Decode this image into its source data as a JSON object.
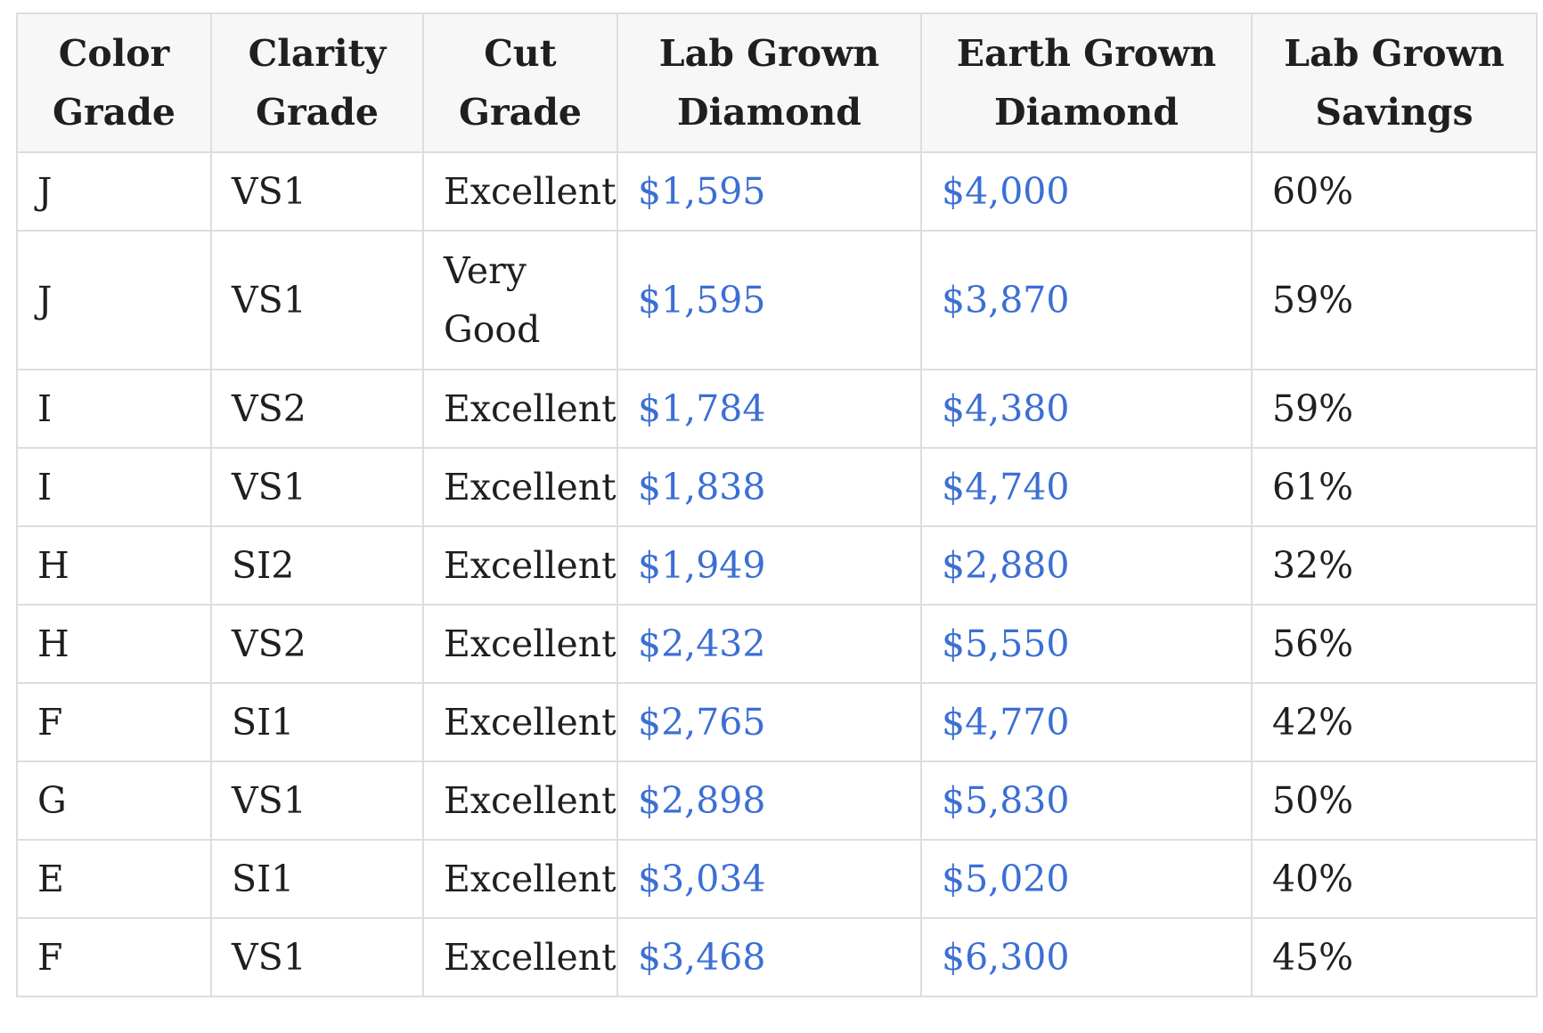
{
  "table": {
    "headers": [
      {
        "line1": "Color",
        "line2": "Grade"
      },
      {
        "line1": "Clarity",
        "line2": "Grade"
      },
      {
        "line1": "Cut",
        "line2": "Grade"
      },
      {
        "line1": "Lab Grown",
        "line2": "Diamond"
      },
      {
        "line1": "Earth Grown",
        "line2": "Diamond"
      },
      {
        "line1": "Lab Grown",
        "line2": "Savings"
      }
    ],
    "rows": [
      {
        "color": "J",
        "clarity": "VS1",
        "cut": "Excellent",
        "lab": "$1,595",
        "earth": "$4,000",
        "savings": "60%"
      },
      {
        "color": "J",
        "clarity": "VS1",
        "cut": "Very Good",
        "lab": "$1,595",
        "earth": "$3,870",
        "savings": "59%"
      },
      {
        "color": "I",
        "clarity": "VS2",
        "cut": "Excellent",
        "lab": "$1,784",
        "earth": "$4,380",
        "savings": "59%"
      },
      {
        "color": "I",
        "clarity": "VS1",
        "cut": "Excellent",
        "lab": "$1,838",
        "earth": "$4,740",
        "savings": "61%"
      },
      {
        "color": "H",
        "clarity": "SI2",
        "cut": "Excellent",
        "lab": "$1,949",
        "earth": "$2,880",
        "savings": "32%"
      },
      {
        "color": "H",
        "clarity": "VS2",
        "cut": "Excellent",
        "lab": "$2,432",
        "earth": "$5,550",
        "savings": "56%"
      },
      {
        "color": "F",
        "clarity": "SI1",
        "cut": "Excellent",
        "lab": "$2,765",
        "earth": "$4,770",
        "savings": "42%"
      },
      {
        "color": "G",
        "clarity": "VS1",
        "cut": "Excellent",
        "lab": "$2,898",
        "earth": "$5,830",
        "savings": "50%"
      },
      {
        "color": "E",
        "clarity": "SI1",
        "cut": "Excellent",
        "lab": "$3,034",
        "earth": "$5,020",
        "savings": "40%"
      },
      {
        "color": "F",
        "clarity": "VS1",
        "cut": "Excellent",
        "lab": "$3,468",
        "earth": "$6,300",
        "savings": "45%"
      }
    ]
  },
  "colors": {
    "price_link": "#3b6fd4",
    "text": "#1f1f1f",
    "header_bg": "#f7f7f7",
    "border": "#dddddd"
  }
}
